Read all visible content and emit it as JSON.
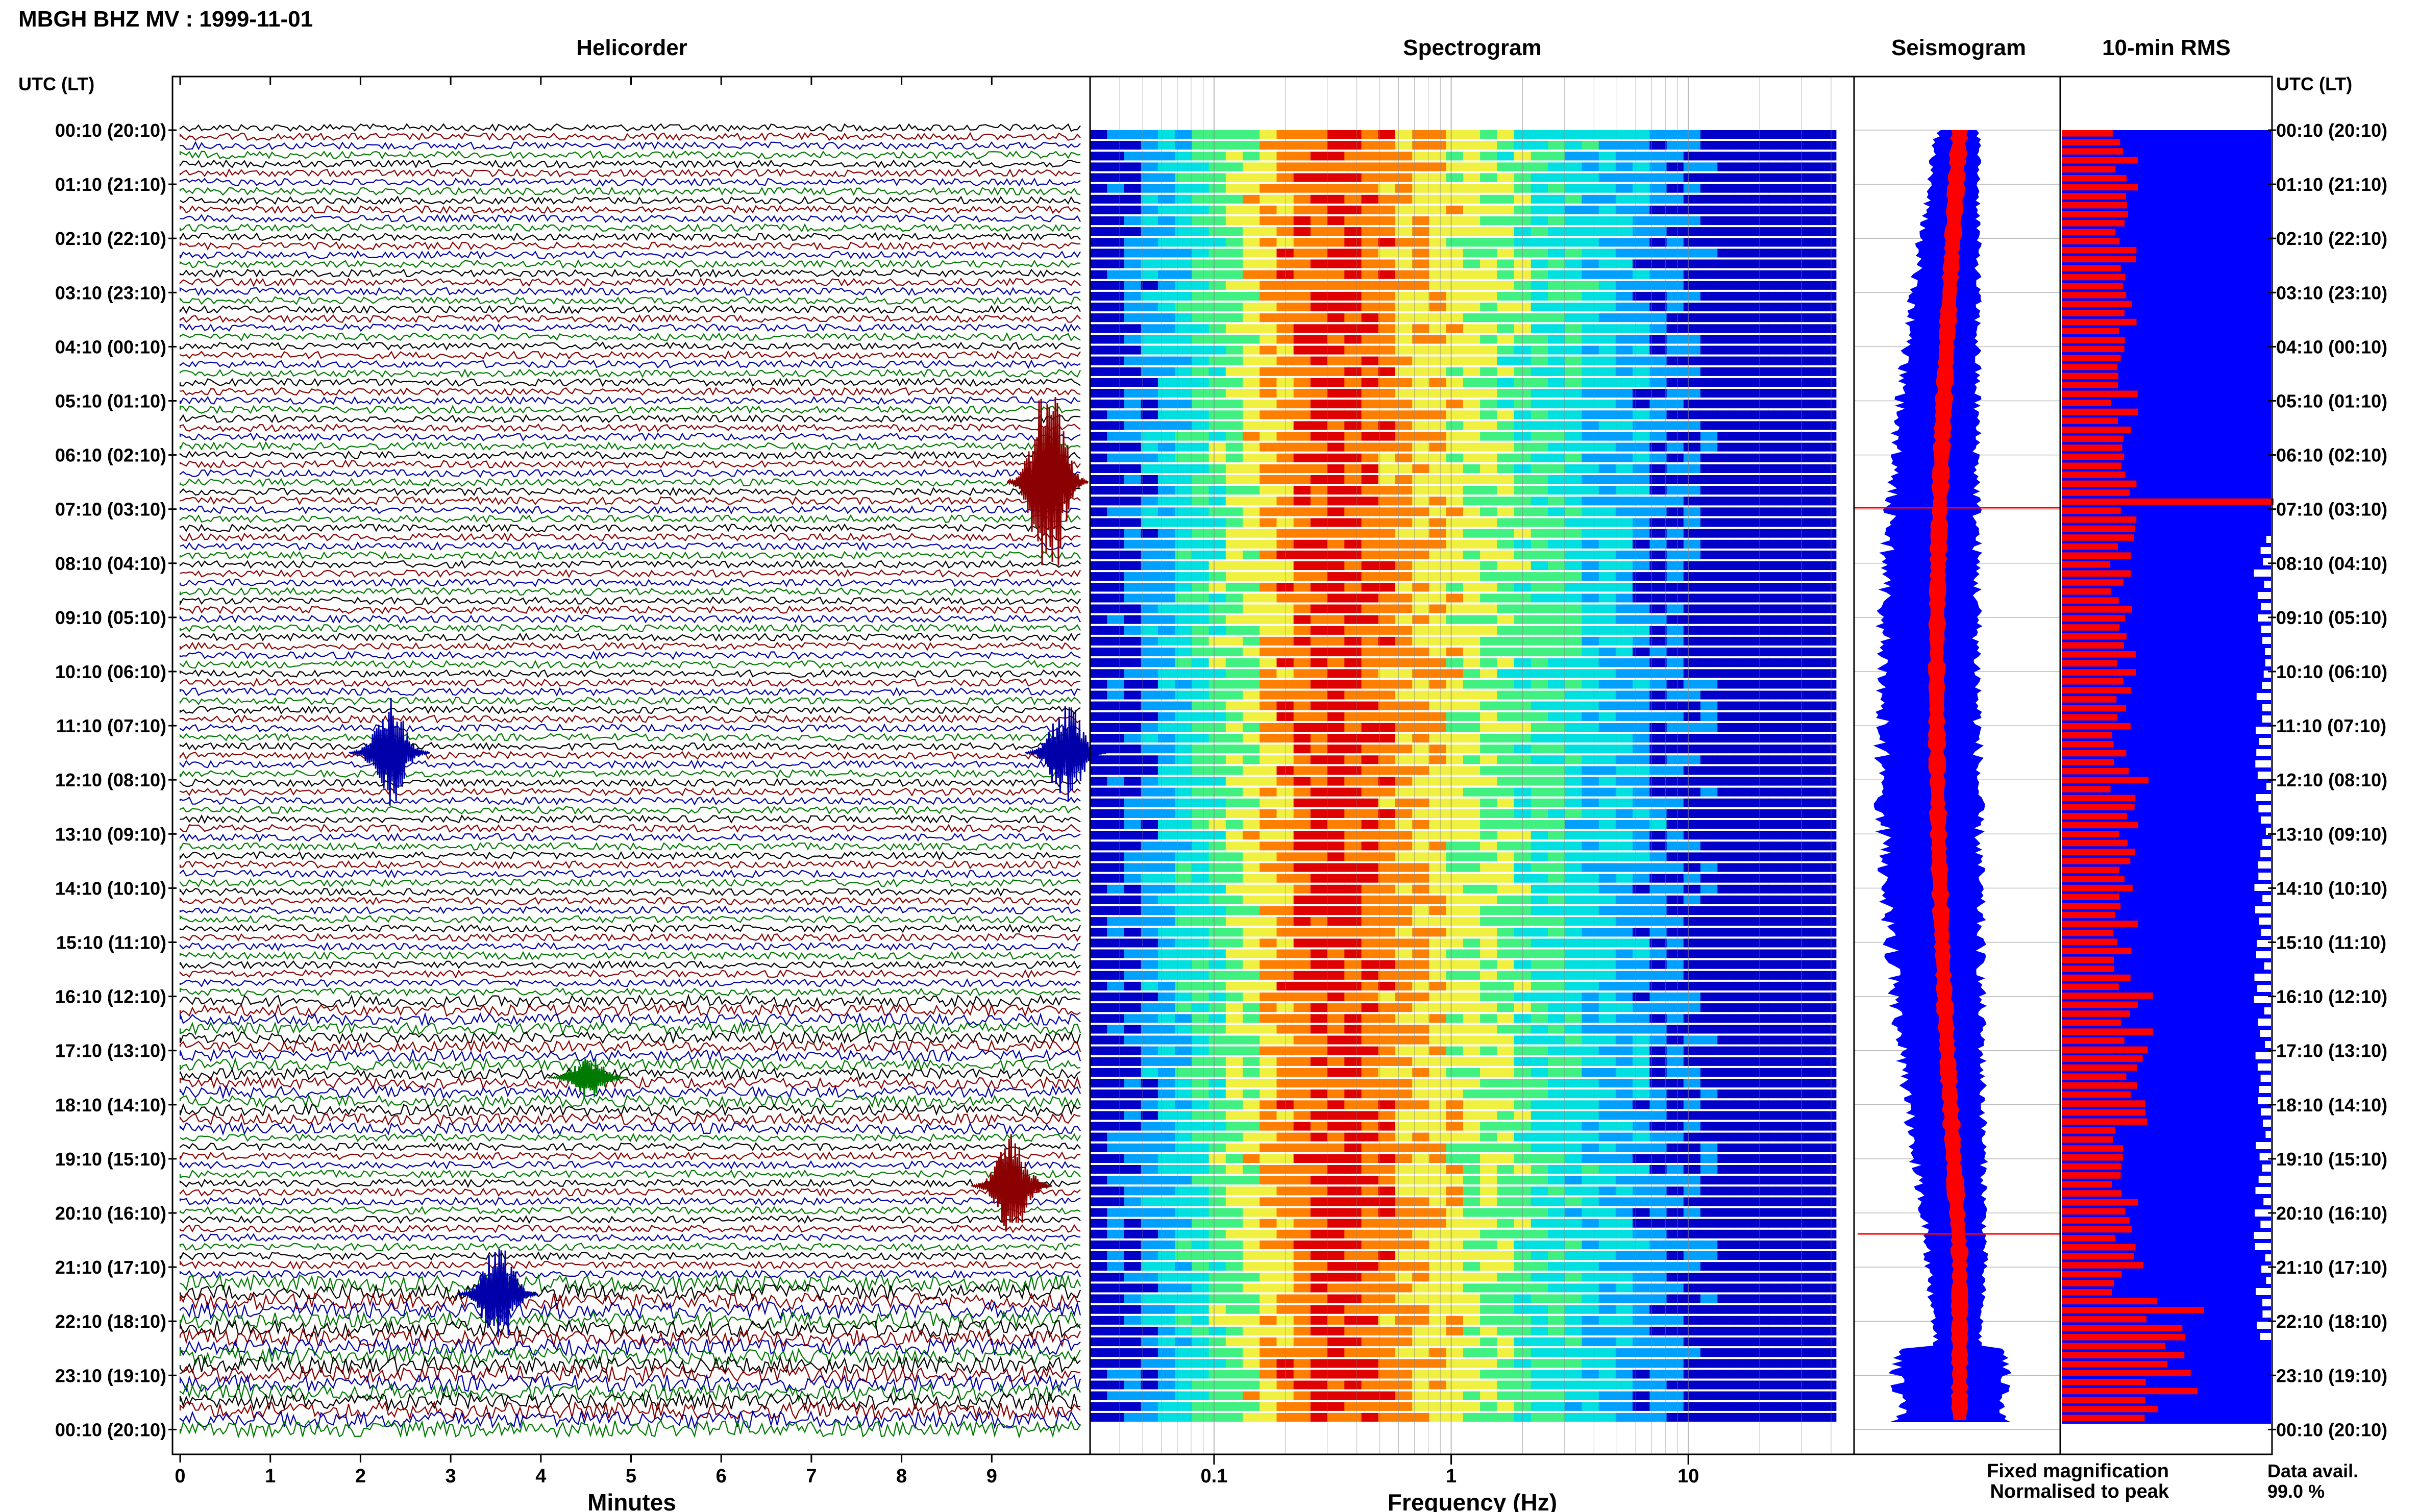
{
  "header": {
    "title": "MBGH BHZ MV : 1999-11-01"
  },
  "panels": {
    "helicorder": "Helicorder",
    "spectrogram": "Spectrogram",
    "seismogram": "Seismogram",
    "rms": "10-min RMS"
  },
  "axis_header": {
    "left": "UTC (LT)",
    "right": "UTC (LT)"
  },
  "time_labels": [
    "00:10 (20:10)",
    "01:10 (21:10)",
    "02:10 (22:10)",
    "03:10 (23:10)",
    "04:10 (00:10)",
    "05:10 (01:10)",
    "06:10 (02:10)",
    "07:10 (03:10)",
    "08:10 (04:10)",
    "09:10 (05:10)",
    "10:10 (06:10)",
    "11:10 (07:10)",
    "12:10 (08:10)",
    "13:10 (09:10)",
    "14:10 (10:10)",
    "15:10 (11:10)",
    "16:10 (12:10)",
    "17:10 (13:10)",
    "18:10 (14:10)",
    "19:10 (15:10)",
    "20:10 (16:10)",
    "21:10 (17:10)",
    "22:10 (18:10)",
    "23:10 (19:10)",
    "00:10 (20:10)"
  ],
  "chart_data": [
    {
      "type": "line",
      "title": "Helicorder",
      "xlabel": "Minutes",
      "xlim": [
        0,
        10
      ],
      "xticks": [
        "0",
        "1",
        "2",
        "3",
        "4",
        "5",
        "6",
        "7",
        "8",
        "9"
      ],
      "trace_colors": [
        "#000000",
        "#8b0000",
        "#0000aa",
        "#007a00"
      ],
      "events": [
        {
          "hour_row": "06:10 (02:10)",
          "minute": 9.4,
          "color": "#8b0000",
          "amplitude": "large"
        },
        {
          "hour_row": "11:10 (07:10)",
          "minute": 2.1,
          "color": "#0000aa",
          "amplitude": "medium"
        },
        {
          "hour_row": "11:10 (07:10)",
          "minute": 9.6,
          "color": "#0000aa",
          "amplitude": "medium"
        },
        {
          "hour_row": "17:10 (13:10)",
          "minute": 4.3,
          "color": "#007a00",
          "amplitude": "small"
        },
        {
          "hour_row": "19:10 (15:10)",
          "minute": 9.0,
          "color": "#8b0000",
          "amplitude": "medium"
        },
        {
          "hour_row": "21:10 (17:10)",
          "minute": 3.3,
          "color": "#0000aa",
          "amplitude": "medium"
        }
      ]
    },
    {
      "type": "heatmap",
      "title": "Spectrogram",
      "xlabel": "Frequency (Hz)",
      "x_scale": "log",
      "xlim": [
        0.03,
        50
      ],
      "xticks": [
        "0.1",
        "1",
        "10"
      ],
      "colormap": [
        "#0000c8",
        "#00a0ff",
        "#00e0e0",
        "#40f080",
        "#f0f040",
        "#ff8000",
        "#e00000"
      ],
      "peak_band_hz": [
        0.2,
        0.35
      ]
    },
    {
      "type": "line",
      "title": "Seismogram",
      "series": [
        {
          "name": "Fixed magnification",
          "color": "#0000ff"
        },
        {
          "name": "Normalised to peak",
          "color": "#ff0000"
        }
      ]
    },
    {
      "type": "bar",
      "title": "10-min RMS",
      "series": [
        {
          "color": "#ff0000"
        },
        {
          "color": "#0000ff"
        }
      ],
      "data_availability": "99.0 %"
    }
  ],
  "legend": {
    "fixed": "Fixed magnification",
    "normalised": "Normalised to peak",
    "fixed_color": "#0000ff",
    "normalised_color": "#ff0000"
  },
  "data_avail": {
    "label": "Data avail.",
    "value": "99.0 %"
  }
}
